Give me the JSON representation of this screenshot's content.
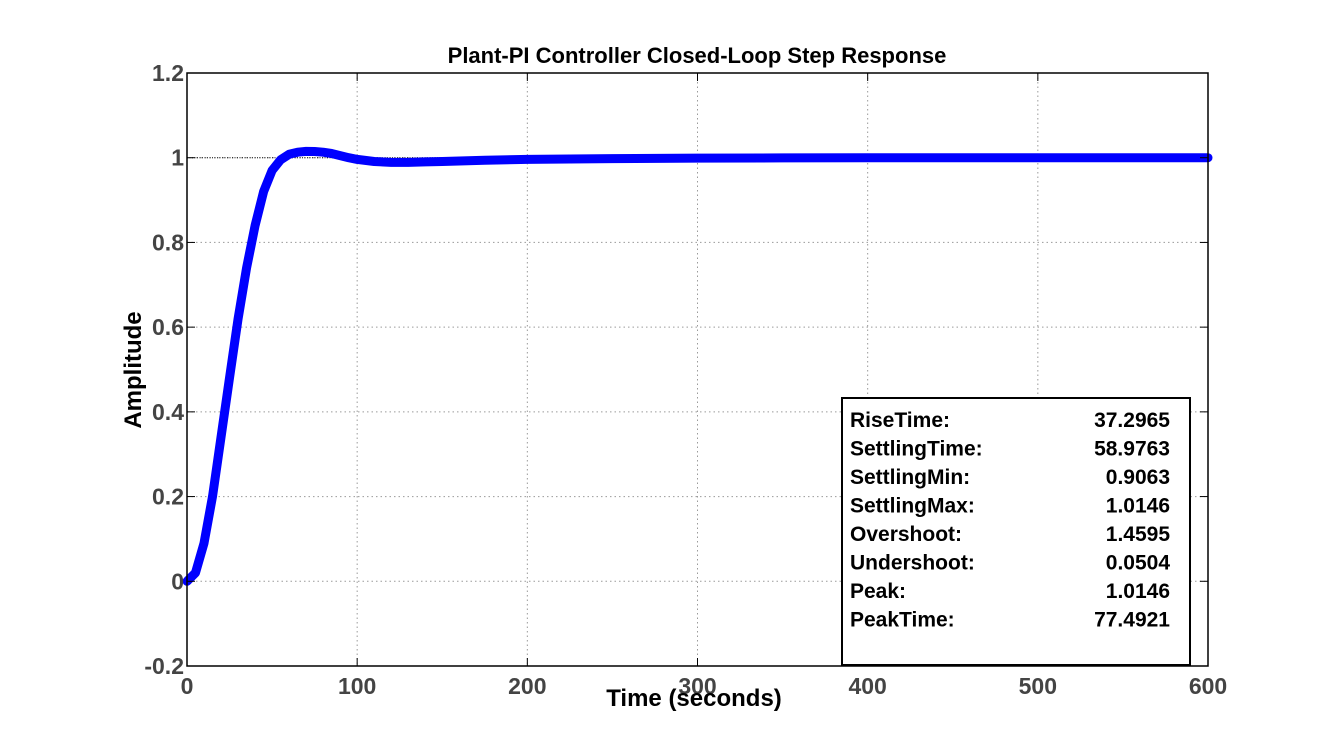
{
  "chart_data": {
    "type": "line",
    "title": "Plant-PI Controller Closed-Loop Step Response",
    "xlabel": "Time (seconds)",
    "ylabel": "Amplitude",
    "xlim": [
      0,
      600
    ],
    "ylim": [
      -0.2,
      1.2
    ],
    "xticks": [
      "0",
      "100",
      "200",
      "300",
      "400",
      "500",
      "600"
    ],
    "yticks": [
      "-0.2",
      "0",
      "0.2",
      "0.4",
      "0.6",
      "0.8",
      "1",
      "1.2"
    ],
    "grid": true,
    "reference_line": 1,
    "series": [
      {
        "color": "#0000ff",
        "x": [
          0,
          5,
          10,
          15,
          20,
          25,
          30,
          35,
          40,
          45,
          50,
          55,
          60,
          65,
          70,
          75,
          80,
          85,
          90,
          95,
          100,
          110,
          120,
          130,
          140,
          150,
          175,
          200,
          250,
          300,
          350,
          400,
          450,
          500,
          550,
          600
        ],
        "y": [
          0,
          0.02,
          0.09,
          0.2,
          0.34,
          0.48,
          0.62,
          0.74,
          0.84,
          0.92,
          0.97,
          0.995,
          1.008,
          1.013,
          1.015,
          1.0146,
          1.013,
          1.01,
          1.005,
          1.0,
          0.996,
          0.991,
          0.989,
          0.989,
          0.99,
          0.991,
          0.994,
          0.996,
          0.998,
          0.999,
          0.9995,
          1.0,
          1.0,
          1.0,
          1.0,
          1.0
        ]
      }
    ],
    "stats": [
      {
        "label": "RiseTime:",
        "value": "37.2965"
      },
      {
        "label": "SettlingTime:",
        "value": "58.9763"
      },
      {
        "label": "SettlingMin:",
        "value": "0.9063"
      },
      {
        "label": "SettlingMax:",
        "value": "1.0146"
      },
      {
        "label": "Overshoot:",
        "value": "1.4595"
      },
      {
        "label": "Undershoot:",
        "value": "0.0504"
      },
      {
        "label": "Peak:",
        "value": "1.0146"
      },
      {
        "label": "PeakTime:",
        "value": "77.4921"
      }
    ]
  }
}
